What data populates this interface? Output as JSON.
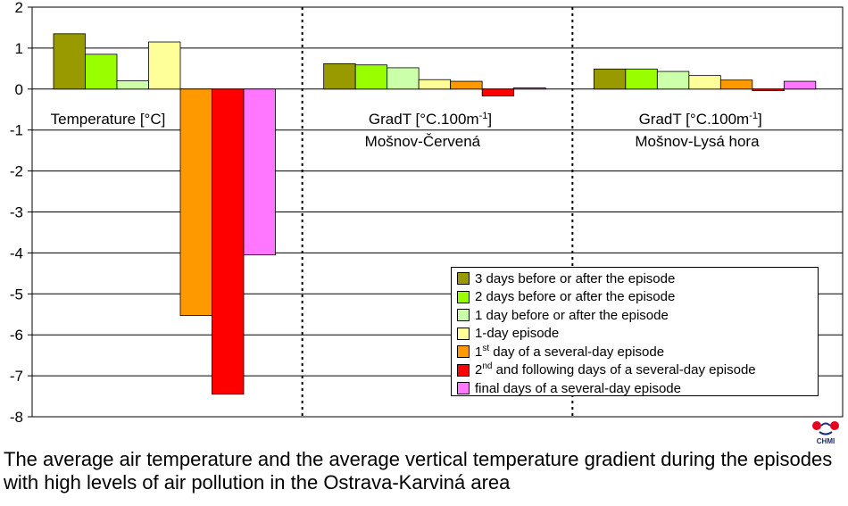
{
  "chart_data": {
    "type": "bar",
    "ylim": [
      -8,
      2
    ],
    "yticks": [
      2,
      1,
      0,
      -1,
      -2,
      -3,
      -4,
      -5,
      -6,
      -7,
      -8
    ],
    "grid": true,
    "groups": [
      {
        "label_lines": [
          "Temperature [°C]"
        ],
        "values": [
          1.35,
          0.85,
          0.2,
          1.15,
          -5.53,
          -7.45,
          -4.05
        ]
      },
      {
        "label_lines": [
          "GradT [°C.100m",
          "Mošnov-Červená"
        ],
        "values": [
          0.62,
          0.59,
          0.52,
          0.23,
          0.19,
          -0.17,
          0.03
        ]
      },
      {
        "label_lines": [
          "GradT [°C.100m",
          "Mošnov-Lysá hora"
        ],
        "values": [
          0.49,
          0.49,
          0.43,
          0.33,
          0.22,
          -0.04,
          0.19
        ]
      }
    ],
    "unit_superscript": "-1",
    "unit_close": "]",
    "series": [
      {
        "name": "3 days before or after the episode",
        "color": "#999900"
      },
      {
        "name": "2 days before or after the episode",
        "color": "#99ff00"
      },
      {
        "name": "1 day before or after the episode",
        "color": "#ccffaa"
      },
      {
        "name": "1-day episode",
        "color": "#ffff99"
      },
      {
        "name_sup": "st",
        "name_rest": " day of a several-day episode",
        "name_lead": "1",
        "color": "#ff9900"
      },
      {
        "name_sup": "nd",
        "name_rest": " and following days of a several-day episode",
        "name_lead": "2",
        "color": "#ff0000"
      },
      {
        "name": "final days of a several-day episode",
        "color": "#ff77ff"
      }
    ],
    "legend_position": "bottom-right"
  },
  "caption": "The average air temperature and the average vertical temperature gradient during the episodes with high levels of air pollution in the Ostrava-Karviná area",
  "logo_text": "CHMI"
}
